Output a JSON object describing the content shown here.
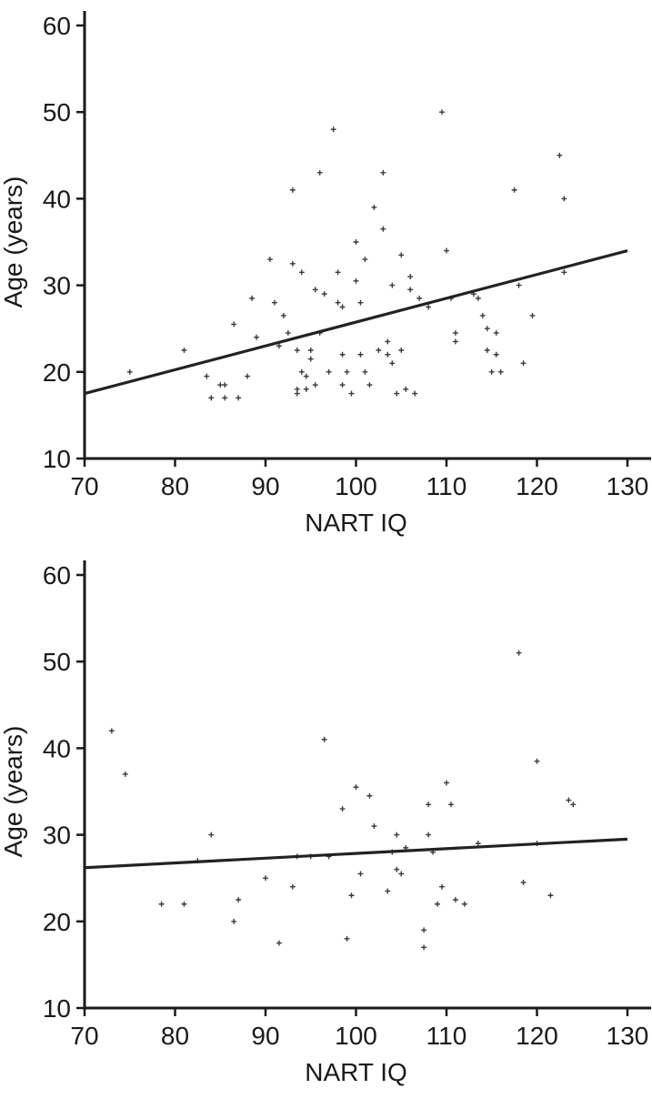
{
  "page": {
    "background": "#ffffff",
    "axis_color": "#1a1a1a",
    "marker_color": "#3a3a3a",
    "line_color": "#222222"
  },
  "chart_data": [
    {
      "type": "scatter",
      "title": "",
      "xlabel": "NART IQ",
      "ylabel": "Age (years)",
      "xlim": [
        70,
        130
      ],
      "ylim": [
        10,
        60
      ],
      "xticks": [
        70,
        80,
        90,
        100,
        110,
        120,
        130
      ],
      "yticks": [
        10,
        20,
        30,
        40,
        50,
        60
      ],
      "grid": false,
      "legend": "none",
      "axis_color": "#1a1a1a",
      "marker_color": "#3a3a3a",
      "line_color": "#222222",
      "regression_line": {
        "x1": 70,
        "y1": 17.5,
        "x2": 130,
        "y2": 34
      },
      "points": [
        [
          75,
          20
        ],
        [
          81,
          22.5
        ],
        [
          83.5,
          19.5
        ],
        [
          84,
          17
        ],
        [
          85,
          18.5
        ],
        [
          85.5,
          18.5
        ],
        [
          85.5,
          17
        ],
        [
          87,
          17
        ],
        [
          86.5,
          25.5
        ],
        [
          88,
          19.5
        ],
        [
          88.5,
          28.5
        ],
        [
          89,
          24
        ],
        [
          90.5,
          33
        ],
        [
          91,
          28
        ],
        [
          91.5,
          23
        ],
        [
          92,
          26.5
        ],
        [
          92.5,
          24.5
        ],
        [
          93,
          41
        ],
        [
          93,
          32.5
        ],
        [
          93.5,
          22.5
        ],
        [
          93.5,
          18
        ],
        [
          93.5,
          17.5
        ],
        [
          94,
          31.5
        ],
        [
          94,
          20
        ],
        [
          94.5,
          19.5
        ],
        [
          94.5,
          18
        ],
        [
          95,
          22.5
        ],
        [
          95,
          21.5
        ],
        [
          95.5,
          29.5
        ],
        [
          95.5,
          18.5
        ],
        [
          96,
          43
        ],
        [
          96,
          24.5
        ],
        [
          96.5,
          29
        ],
        [
          97,
          20
        ],
        [
          97.5,
          48
        ],
        [
          98,
          31.5
        ],
        [
          98,
          28
        ],
        [
          98.5,
          27.5
        ],
        [
          98.5,
          22
        ],
        [
          98.5,
          18.5
        ],
        [
          99,
          20
        ],
        [
          99.5,
          17.5
        ],
        [
          100,
          35
        ],
        [
          100,
          30.5
        ],
        [
          100.5,
          28
        ],
        [
          100.5,
          22
        ],
        [
          101,
          33
        ],
        [
          101,
          20
        ],
        [
          101.5,
          18.5
        ],
        [
          102,
          39
        ],
        [
          102.5,
          22.5
        ],
        [
          103,
          43
        ],
        [
          103,
          36.5
        ],
        [
          103.5,
          23.5
        ],
        [
          103.5,
          22
        ],
        [
          104,
          30
        ],
        [
          104,
          21
        ],
        [
          104.5,
          17.5
        ],
        [
          105,
          33.5
        ],
        [
          105,
          22.5
        ],
        [
          105.5,
          18
        ],
        [
          106,
          31
        ],
        [
          106,
          29.5
        ],
        [
          106.5,
          17.5
        ],
        [
          107,
          28.5
        ],
        [
          108,
          27.5
        ],
        [
          109.5,
          50
        ],
        [
          110,
          34
        ],
        [
          110.5,
          28.5
        ],
        [
          111,
          24.5
        ],
        [
          111,
          23.5
        ],
        [
          113,
          29
        ],
        [
          113.5,
          28.5
        ],
        [
          114,
          26.5
        ],
        [
          114.5,
          25
        ],
        [
          114.5,
          22.5
        ],
        [
          115,
          20
        ],
        [
          115.5,
          24.5
        ],
        [
          115.5,
          22
        ],
        [
          116,
          20
        ],
        [
          117.5,
          41
        ],
        [
          118,
          30
        ],
        [
          118.5,
          21
        ],
        [
          119.5,
          26.5
        ],
        [
          122.5,
          45
        ],
        [
          123,
          40
        ],
        [
          123,
          31.5
        ]
      ]
    },
    {
      "type": "scatter",
      "title": "",
      "xlabel": "NART IQ",
      "ylabel": "Age (years)",
      "xlim": [
        70,
        130
      ],
      "ylim": [
        10,
        60
      ],
      "xticks": [
        70,
        80,
        90,
        100,
        110,
        120,
        130
      ],
      "yticks": [
        10,
        20,
        30,
        40,
        50,
        60
      ],
      "grid": false,
      "legend": "none",
      "axis_color": "#1a1a1a",
      "marker_color": "#3a3a3a",
      "line_color": "#222222",
      "regression_line": {
        "x1": 70,
        "y1": 26.2,
        "x2": 130,
        "y2": 29.5
      },
      "points": [
        [
          73,
          42
        ],
        [
          74.5,
          37
        ],
        [
          78.5,
          22
        ],
        [
          81,
          22
        ],
        [
          82.5,
          27
        ],
        [
          84,
          30
        ],
        [
          86.5,
          20
        ],
        [
          87,
          22.5
        ],
        [
          90,
          25
        ],
        [
          91.5,
          17.5
        ],
        [
          93,
          24
        ],
        [
          93.5,
          27.5
        ],
        [
          95,
          27.5
        ],
        [
          96.5,
          41
        ],
        [
          97,
          27.5
        ],
        [
          98.5,
          33
        ],
        [
          99,
          18
        ],
        [
          99.5,
          23
        ],
        [
          100,
          35.5
        ],
        [
          100.5,
          25.5
        ],
        [
          101.5,
          34.5
        ],
        [
          102,
          31
        ],
        [
          103.5,
          23.5
        ],
        [
          104,
          28
        ],
        [
          104.5,
          30
        ],
        [
          104.5,
          26
        ],
        [
          105,
          25.5
        ],
        [
          105.5,
          28.5
        ],
        [
          107.5,
          19
        ],
        [
          107.5,
          17
        ],
        [
          108,
          33.5
        ],
        [
          108,
          30
        ],
        [
          108.5,
          28
        ],
        [
          109,
          22
        ],
        [
          109.5,
          24
        ],
        [
          110,
          36
        ],
        [
          110.5,
          33.5
        ],
        [
          111,
          22.5
        ],
        [
          112,
          22
        ],
        [
          113.5,
          29
        ],
        [
          118,
          51
        ],
        [
          118.5,
          24.5
        ],
        [
          120,
          38.5
        ],
        [
          120,
          29
        ],
        [
          121.5,
          23
        ],
        [
          123.5,
          34
        ],
        [
          124,
          33.5
        ]
      ]
    }
  ]
}
